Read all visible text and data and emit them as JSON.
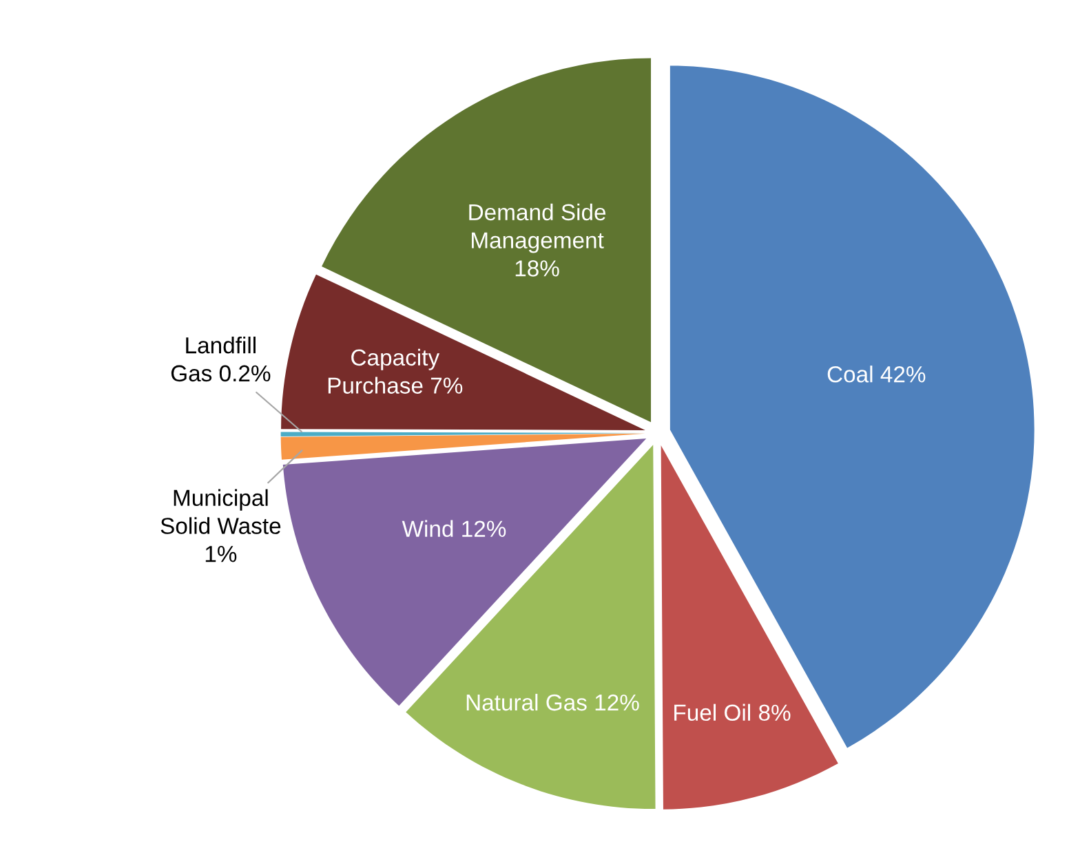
{
  "chart_data": {
    "type": "pie",
    "categories": [
      "Coal",
      "Fuel Oil",
      "Natural Gas",
      "Wind",
      "Municipal\nSolid Waste",
      "Landfill\nGas",
      "Capacity\nPurchase",
      "Demand Side\nManagement"
    ],
    "values": [
      42,
      8,
      12,
      12,
      1,
      0.2,
      7,
      18
    ],
    "value_labels": [
      "42%",
      "8%",
      "12%",
      "12%",
      "1%",
      "0.2%",
      "7%",
      "18%"
    ],
    "colors": [
      "#4f81bd",
      "#c0504d",
      "#9bbb59",
      "#8064a2",
      "#f79646",
      "#4bacc6",
      "#772c2a",
      "#5f7530"
    ]
  }
}
